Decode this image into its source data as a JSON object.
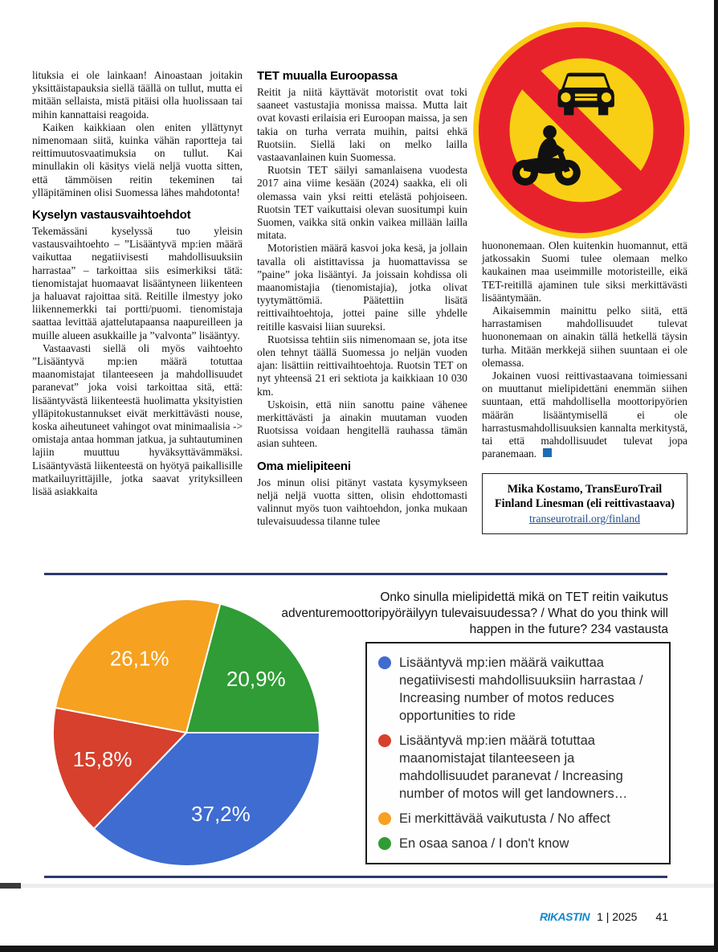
{
  "article": {
    "col1": {
      "para1": "lituksia ei ole lainkaan! Ainoastaan joitakin yksittäistapauksia siellä täällä on tullut, mutta ei mitään sellaista, mistä pitäisi olla huolissaan tai mihin kannattaisi reagoida.",
      "para2": "Kaiken kaikkiaan olen eniten yllättynyt nimenomaan siitä, kuinka vähän raportteja tai reittimuutosvaatimuksia on tullut. Kai minullakin oli käsitys vielä neljä vuotta sitten, että tämmöisen reitin tekeminen tai ylläpitäminen olisi Suomessa lähes mahdotonta!",
      "heading": "Kyselyn vastausvaihtoehdot",
      "para3": "Tekemässäni kyselyssä tuo yleisin vastausvaihtoehto – ”Lisääntyvä mp:ien määrä vaikuttaa negatiivisesti mahdollisuuksiin harrastaa” – tarkoittaa siis esimerkiksi tätä: tienomistajat huomaavat lisääntyneen liikenteen ja haluavat rajoittaa sitä. Reitille ilmestyy joko liikennemerkki tai portti/puomi. tienomistaja saattaa levittää ajattelutapaansa naapureilleen ja muille alueen asukkaille ja ”valvonta” lisääntyy.",
      "para4": "Vastaavasti siellä oli myös vaihtoehto ”Lisääntyvä mp:ien määrä totuttaa maanomistajat tilanteeseen ja mahdollisuudet paranevat” joka voisi tarkoittaa sitä, että: lisääntyvästä liikenteestä huolimatta yksityistien ylläpitokustannukset eivät merkittävästi nouse, koska aiheutuneet vahingot ovat minimaalisia -> omistaja antaa homman jatkua, ja suhtautuminen lajiin muuttuu hyväksyttävämmäksi. Lisääntyvästä liikenteestä on hyötyä paikallisille matkailuyrittäjille, jotka saavat yrityksilleen lisää asiakkaita"
    },
    "col2": {
      "heading1": "TET muualla Euroopassa",
      "para1": "Reitit ja niitä käyttävät motoristit ovat toki saaneet vastustajia monissa maissa. Mutta lait ovat kovasti erilaisia eri Euroopan maissa, ja sen takia on turha verrata muihin, paitsi ehkä Ruotsiin. Siellä laki on melko lailla vastaavanlainen kuin Suomessa.",
      "para2": "Ruotsin TET säilyi samanlaisena vuodesta 2017 aina viime kesään (2024) saakka, eli oli olemassa vain yksi reitti etelästä pohjoiseen. Ruotsin TET vaikuttaisi olevan suositumpi kuin Suomen, vaikka sitä onkin vaikea millään lailla mitata.",
      "para3": "Motoristien määrä kasvoi joka kesä, ja jollain tavalla oli aistittavissa ja huomattavissa se ”paine” joka lisääntyi. Ja joissain kohdissa oli maanomistajia (tienomistajia), jotka olivat tyytymättömiä. Päätettiin lisätä reittivaihtoehtoja, jottei paine sille yhdelle reitille kasvaisi liian suureksi.",
      "para4": "Ruotsissa tehtiin siis nimenomaan se, jota itse olen tehnyt täällä Suomessa jo neljän vuoden ajan: lisättiin reittivaihtoehtoja. Ruotsin TET on nyt yhteensä 21 eri sektiota ja kaikkiaan 10 030 km.",
      "para5": "Uskoisin, että niin sanottu paine vähenee merkittävästi ja ainakin muutaman vuoden Ruotsissa voidaan hengitellä rauhassa tämän asian suhteen.",
      "heading2": "Oma mielipiteeni",
      "para6": "Jos minun olisi pitänyt vastata kysymykseen neljä neljä vuotta sitten, olisin ehdottomasti valinnut myös tuon vaihtoehdon, jonka mukaan tulevaisuudessa tilanne tulee"
    },
    "col3": {
      "para1": "huononemaan. Olen kuitenkin huomannut, että jatkossakin Suomi tulee olemaan melko kaukainen maa useimmille motoristeille, eikä TET-reitillä ajaminen tule siksi merkittävästi lisääntymään.",
      "para2": "Aikaisemmin mainittu pelko siitä, että harrastamisen mahdollisuudet tulevat huononemaan on ainakin tällä hetkellä täysin turha. Mitään merkkejä siihen suuntaan ei ole olemassa.",
      "para3": "Jokainen vuosi reittivastaavana toimiessani on muuttanut mielipidettäni enemmän siihen suuntaan, että mahdollisella moottoripyörien määrän lisääntymisellä ei ole harrastusmahdollisuuksien kannalta merkitystä, tai että mahdollisuudet tulevat jopa paranemaan.",
      "author_box": {
        "line1": "Mika Kostamo, TransEuroTrail",
        "line2": "Finland Linesman (eli reittivastaava)",
        "link": "transeurotrail.org/finland"
      }
    }
  },
  "traffic_sign": {
    "name": "no-motor-vehicles-prohibition-sign",
    "background_color": "#F9CF15",
    "ring_color": "#E8222D",
    "symbol_color": "#111111",
    "symbols": [
      "car",
      "motorcycle"
    ]
  },
  "chart_data": {
    "type": "pie",
    "title": "Onko sinulla mielipidettä mikä on TET reitin vaikutus adventuremoottoripyöräilyyn tulevaisuudessa? / What do you think will happen in the future? 234 vastausta",
    "total_responses": 234,
    "start_angle_deg": 0,
    "direction": "clockwise",
    "legend_position": "right",
    "slices": [
      {
        "label": "Lisääntyvä mp:ien määrä vaikuttaa negatiivisesti mahdollisuuksiin harrastaa / Increasing number of motos reduces opportunities to ride",
        "value": 37.2,
        "display": "37,2%",
        "color": "#3E6CD0"
      },
      {
        "label": "Lisääntyvä mp:ien määrä totuttaa maanomistajat tilanteeseen ja mahdollisuudet paranevat / Increasing number of motos will get landowners…",
        "value": 15.8,
        "display": "15,8%",
        "color": "#D6402C"
      },
      {
        "label": "Ei merkittävää vaikutusta / No affect",
        "value": 26.1,
        "display": "26,1%",
        "color": "#F6A120"
      },
      {
        "label": "En osaa sanoa / I don't know",
        "value": 20.9,
        "display": "20,9%",
        "color": "#2F9C35"
      }
    ]
  },
  "footer": {
    "magazine": "RIKASTIN",
    "issue": "1 | 2025",
    "page_number": "41"
  }
}
